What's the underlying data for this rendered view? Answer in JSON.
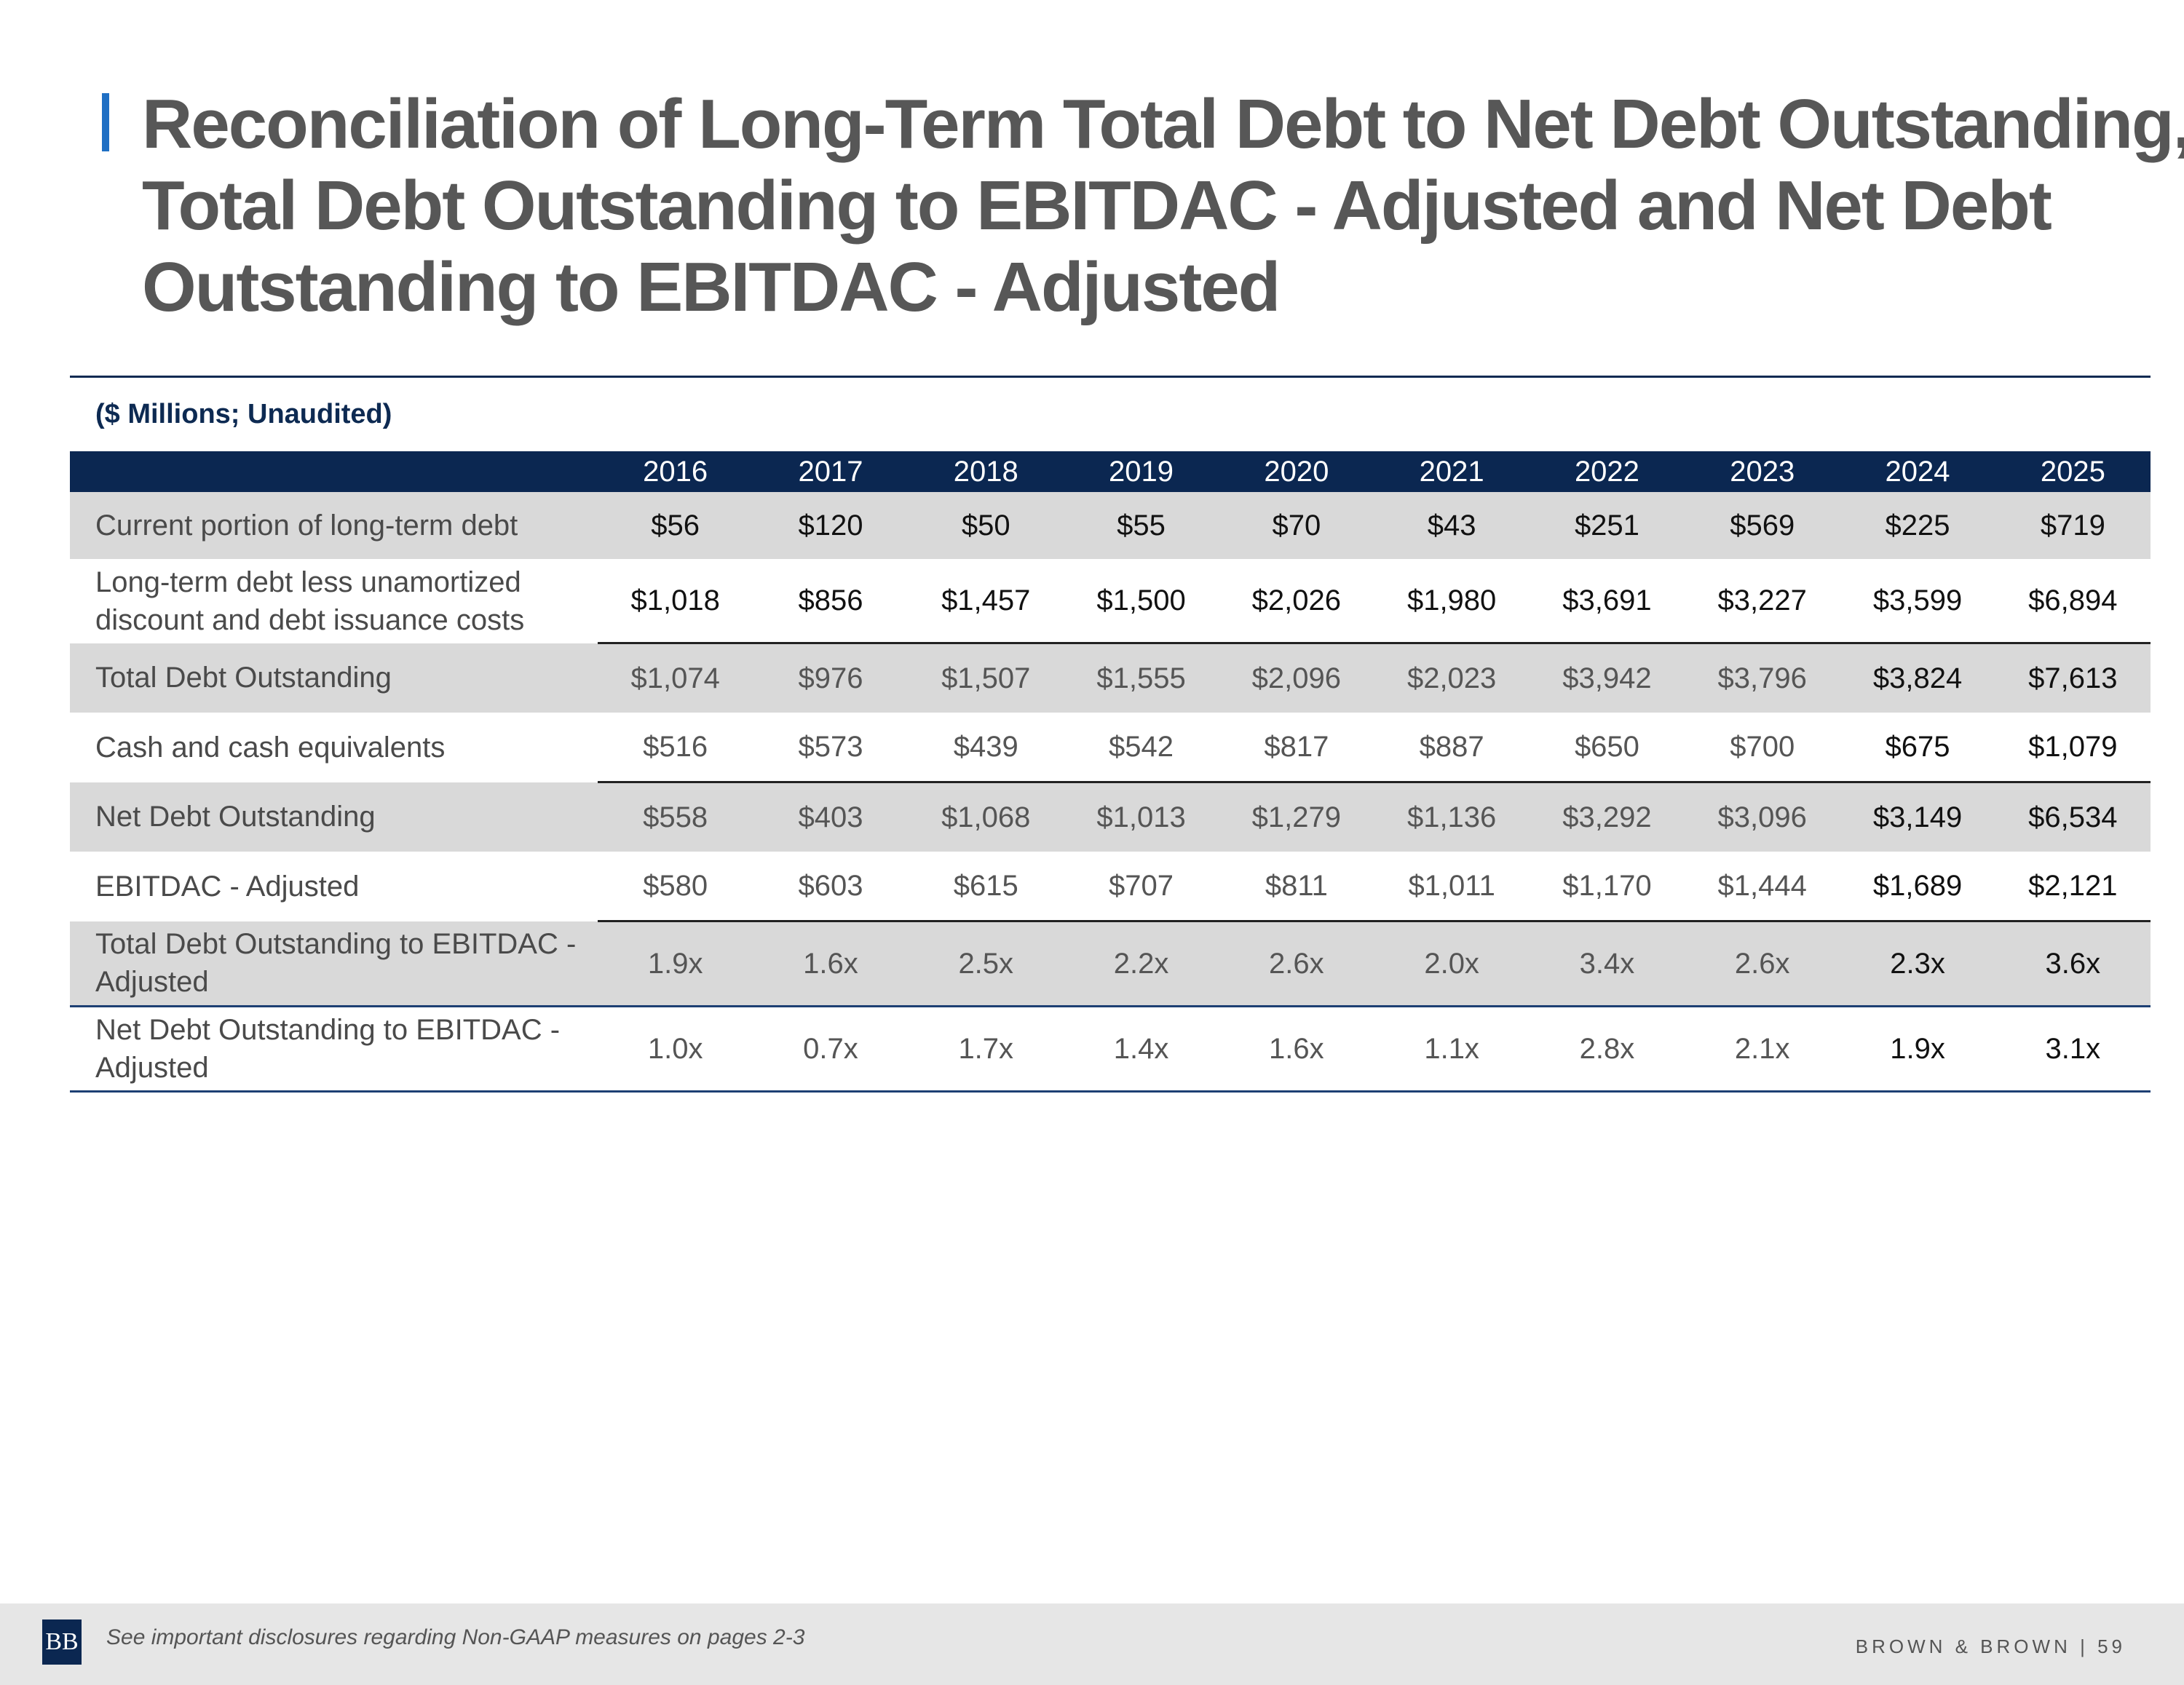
{
  "title_lines": [
    "Reconciliation of Long-Term Total Debt to Net Debt Outstanding,",
    "Total Debt Outstanding to EBITDAC - Adjusted and Net Debt",
    "Outstanding to EBITDAC - Adjusted"
  ],
  "units_note": "($ Millions; Unaudited)",
  "table": {
    "years": [
      "2016",
      "2017",
      "2018",
      "2019",
      "2020",
      "2021",
      "2022",
      "2023",
      "2024",
      "2025"
    ],
    "rows": [
      {
        "label": "Current portion of long-term debt",
        "values": [
          "$56",
          "$120",
          "$50",
          "$55",
          "$70",
          "$43",
          "$251",
          "$569",
          "$225",
          "$719"
        ]
      },
      {
        "label": "Long-term debt less unamortized discount and debt issuance costs",
        "values": [
          "$1,018",
          "$856",
          "$1,457",
          "$1,500",
          "$2,026",
          "$1,980",
          "$3,691",
          "$3,227",
          "$3,599",
          "$6,894"
        ]
      },
      {
        "label": "Total Debt Outstanding",
        "values": [
          "$1,074",
          "$976",
          "$1,507",
          "$1,555",
          "$2,096",
          "$2,023",
          "$3,942",
          "$3,796",
          "$3,824",
          "$7,613"
        ]
      },
      {
        "label": "Cash and cash equivalents",
        "values": [
          "$516",
          "$573",
          "$439",
          "$542",
          "$817",
          "$887",
          "$650",
          "$700",
          "$675",
          "$1,079"
        ]
      },
      {
        "label": "Net Debt Outstanding",
        "values": [
          "$558",
          "$403",
          "$1,068",
          "$1,013",
          "$1,279",
          "$1,136",
          "$3,292",
          "$3,096",
          "$3,149",
          "$6,534"
        ]
      },
      {
        "label": "EBITDAC - Adjusted",
        "values": [
          "$580",
          "$603",
          "$615",
          "$707",
          "$811",
          "$1,011",
          "$1,170",
          "$1,444",
          "$1,689",
          "$2,121"
        ]
      },
      {
        "label": "Total Debt Outstanding to EBITDAC - Adjusted",
        "values": [
          "1.9x",
          "1.6x",
          "2.5x",
          "2.2x",
          "2.6x",
          "2.0x",
          "3.4x",
          "2.6x",
          "2.3x",
          "3.6x"
        ]
      },
      {
        "label": "Net Debt Outstanding to EBITDAC - Adjusted",
        "values": [
          "1.0x",
          "0.7x",
          "1.7x",
          "1.4x",
          "1.6x",
          "1.1x",
          "2.8x",
          "2.1x",
          "1.9x",
          "3.1x"
        ]
      }
    ]
  },
  "footer": {
    "logo_text": "BB",
    "disclosure": "See important disclosures regarding Non-GAAP measures on pages 2-3",
    "brand": "BROWN & BROWN",
    "separator": "|",
    "page_number": "59"
  },
  "colors": {
    "navy": "#0b2751",
    "accent_blue": "#1f6fc4",
    "title_gray": "#575757",
    "row_shade": "#d9d9d9"
  }
}
